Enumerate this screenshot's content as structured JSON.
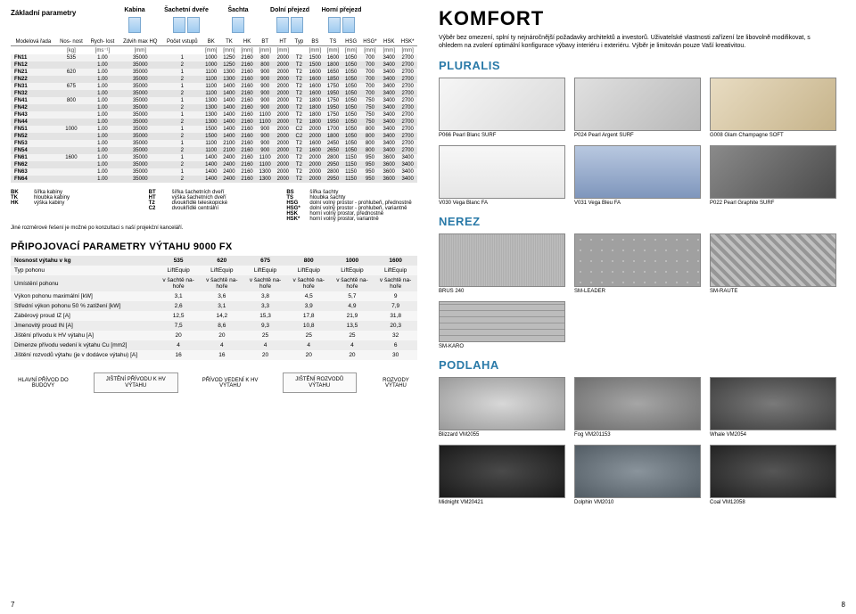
{
  "left": {
    "header_label": "Základní parametry",
    "header_cols": [
      "Kabina",
      "Šachetní dveře",
      "Šachta",
      "Dolní přejezd",
      "Horní přejezd"
    ],
    "cols_model": [
      "Modelová řada",
      "Nos-\nnost",
      "Rych-\nlost",
      "Zdvih max HQ",
      "Počet vstupů",
      "BK",
      "TK",
      "HK",
      "BT",
      "HT",
      "Typ",
      "BS",
      "TS",
      "HSG",
      "HSG*",
      "HSK",
      "HSK*"
    ],
    "units": [
      "",
      "[kg]",
      "[ms⁻¹]",
      "[mm]",
      "",
      "[mm]",
      "[mm]",
      "[mm]",
      "[mm]",
      "[mm]",
      "",
      "[mm]",
      "[mm]",
      "[mm]",
      "[mm]",
      "[mm]",
      "[mm]"
    ],
    "rows": [
      [
        "FN11",
        "535",
        "1.00",
        "35000",
        "1",
        "1000",
        "1250",
        "2160",
        "800",
        "2000",
        "T2",
        "1500",
        "1600",
        "1050",
        "700",
        "3400",
        "2700"
      ],
      [
        "FN12",
        "",
        "1.00",
        "35000",
        "2",
        "1000",
        "1250",
        "2160",
        "800",
        "2000",
        "T2",
        "1500",
        "1800",
        "1050",
        "700",
        "3400",
        "2700"
      ],
      [
        "FN21",
        "620",
        "1.00",
        "35000",
        "1",
        "1100",
        "1300",
        "2160",
        "900",
        "2000",
        "T2",
        "1600",
        "1650",
        "1050",
        "700",
        "3400",
        "2700"
      ],
      [
        "FN22",
        "",
        "1.00",
        "35000",
        "2",
        "1100",
        "1300",
        "2160",
        "900",
        "2000",
        "T2",
        "1600",
        "1850",
        "1050",
        "700",
        "3400",
        "2700"
      ],
      [
        "FN31",
        "675",
        "1.00",
        "35000",
        "1",
        "1100",
        "1400",
        "2160",
        "900",
        "2000",
        "T2",
        "1600",
        "1750",
        "1050",
        "700",
        "3400",
        "2700"
      ],
      [
        "FN32",
        "",
        "1.00",
        "35000",
        "2",
        "1100",
        "1400",
        "2160",
        "900",
        "2000",
        "T2",
        "1600",
        "1950",
        "1050",
        "700",
        "3400",
        "2700"
      ],
      [
        "FN41",
        "800",
        "1.00",
        "35000",
        "1",
        "1300",
        "1400",
        "2160",
        "900",
        "2000",
        "T2",
        "1800",
        "1750",
        "1050",
        "750",
        "3400",
        "2700"
      ],
      [
        "FN42",
        "",
        "1.00",
        "35000",
        "2",
        "1300",
        "1400",
        "2160",
        "900",
        "2000",
        "T2",
        "1800",
        "1950",
        "1050",
        "750",
        "3400",
        "2700"
      ],
      [
        "FN43",
        "",
        "1.00",
        "35000",
        "1",
        "1300",
        "1400",
        "2160",
        "1100",
        "2000",
        "T2",
        "1800",
        "1750",
        "1050",
        "750",
        "3400",
        "2700"
      ],
      [
        "FN44",
        "",
        "1.00",
        "35000",
        "2",
        "1300",
        "1400",
        "2160",
        "1100",
        "2000",
        "T2",
        "1800",
        "1950",
        "1050",
        "750",
        "3400",
        "2700"
      ],
      [
        "FN51",
        "1000",
        "1.00",
        "35000",
        "1",
        "1500",
        "1400",
        "2160",
        "900",
        "2000",
        "C2",
        "2000",
        "1700",
        "1050",
        "800",
        "3400",
        "2700"
      ],
      [
        "FN52",
        "",
        "1.00",
        "35000",
        "2",
        "1500",
        "1400",
        "2160",
        "900",
        "2000",
        "C2",
        "2000",
        "1800",
        "1050",
        "800",
        "3400",
        "2700"
      ],
      [
        "FN53",
        "",
        "1.00",
        "35000",
        "1",
        "1100",
        "2100",
        "2160",
        "900",
        "2000",
        "T2",
        "1600",
        "2450",
        "1050",
        "800",
        "3400",
        "2700"
      ],
      [
        "FN54",
        "",
        "1.00",
        "35000",
        "2",
        "1100",
        "2100",
        "2160",
        "900",
        "2000",
        "T2",
        "1600",
        "2650",
        "1050",
        "800",
        "3400",
        "2700"
      ],
      [
        "FN61",
        "1600",
        "1.00",
        "35000",
        "1",
        "1400",
        "2400",
        "2160",
        "1100",
        "2000",
        "T2",
        "2000",
        "2800",
        "1150",
        "950",
        "3600",
        "3400"
      ],
      [
        "FN62",
        "",
        "1.00",
        "35000",
        "2",
        "1400",
        "2400",
        "2160",
        "1100",
        "2000",
        "T2",
        "2000",
        "2950",
        "1150",
        "950",
        "3600",
        "3400"
      ],
      [
        "FN63",
        "",
        "1.00",
        "35000",
        "1",
        "1400",
        "2400",
        "2160",
        "1300",
        "2000",
        "T2",
        "2000",
        "2800",
        "1150",
        "950",
        "3600",
        "3400"
      ],
      [
        "FN64",
        "",
        "1.00",
        "35000",
        "2",
        "1400",
        "2400",
        "2160",
        "1300",
        "2000",
        "T2",
        "2000",
        "2950",
        "1150",
        "950",
        "3600",
        "3400"
      ]
    ],
    "legend": [
      [
        [
          "BK",
          "šířka kabiny"
        ],
        [
          "TK",
          "hloubka kabiny"
        ],
        [
          "HK",
          "výška kabiny"
        ]
      ],
      [
        [
          "BT",
          "šířka šachetních dveří"
        ],
        [
          "HT",
          "výška šachetních dveří"
        ],
        [
          "T2",
          "dvoukřídlé teleskopické"
        ],
        [
          "C2",
          "dvoukřídlé centrální"
        ]
      ],
      [
        [
          "BS",
          "šířka šachty"
        ],
        [
          "TS",
          "hloubka šachty"
        ],
        [
          "HSG",
          "dolní volný prostor - prohlubeň, přednostně"
        ],
        [
          "HSG*",
          "dolní volný prostor - prohlubeň, variantně"
        ],
        [
          "HSK",
          "horní volný prostor, přednostně"
        ],
        [
          "HSK*",
          "horní volný prostor, variantně"
        ]
      ]
    ],
    "legend_note": "Jiné rozměrové řešení je možné po konzultaci s naší projekční kanceláří.",
    "params_title": "PŘIPOJOVACÍ PARAMETRY VÝTAHU 9000 FX",
    "params_head": [
      "Nosnost výtahu v kg",
      "535",
      "620",
      "675",
      "800",
      "1000",
      "1600"
    ],
    "params_rows": [
      [
        "Typ pohonu",
        "LiftEquip",
        "LiftEquip",
        "LiftEquip",
        "LiftEquip",
        "LiftEquip",
        "LiftEquip"
      ],
      [
        "Umístění pohonu",
        "v šachtě na-\nhoře",
        "v šachtě na-\nhoře",
        "v šachtě na-\nhoře",
        "v šachtě na-\nhoře",
        "v šachtě na-\nhoře",
        "v šachtě na-\nhoře"
      ],
      [
        "Výkon pohonu maximální [kW]",
        "3,1",
        "3,6",
        "3,8",
        "4,5",
        "5,7",
        "9"
      ],
      [
        "Střední výkon pohonu 50 % zatížení [kW]",
        "2,6",
        "3,1",
        "3,3",
        "3,9",
        "4,9",
        "7,9"
      ],
      [
        "Záběrový proud IZ [A]",
        "12,5",
        "14,2",
        "15,3",
        "17,8",
        "21,9",
        "31,8"
      ],
      [
        "Jmenovitý proud IN [A]",
        "7,5",
        "8,6",
        "9,3",
        "10,8",
        "13,5",
        "20,3"
      ],
      [
        "Jištění přívodu k HV výtahu [A]",
        "20",
        "20",
        "25",
        "25",
        "25",
        "32"
      ],
      [
        "Dimenze přívodu vedení k výtahu Cu [mm2]",
        "4",
        "4",
        "4",
        "4",
        "4",
        "6"
      ],
      [
        "Jištění rozvodů výtahu (je v dodávce výtahu) [A]",
        "16",
        "16",
        "20",
        "20",
        "20",
        "30"
      ]
    ],
    "wiring": [
      "HLAVNÍ PŘÍVOD DO BUDOVY",
      "JIŠTĚNÍ PŘÍVODU K HV VÝTAHU",
      "PŘÍVOD VEDENÍ K HV VÝTAHU",
      "JIŠTĚNÍ ROZVODŮ VÝTAHU",
      "ROZVODY VÝTAHU"
    ],
    "page_num": "7"
  },
  "right": {
    "title": "KOMFORT",
    "sub": "Výběr bez omezení, splní ty nejnáročnější požadavky architektů a investorů. Uživatelské vlastnosti zařízení lze libovolně modifikovat, s ohledem na zvolení optimální konfigurace výbavy interiéru i exteriéru. Výběr je limitován pouze Vaší kreativitou.",
    "sections": [
      {
        "title": "PLURALIS",
        "rows": [
          [
            {
              "cap": "P066 Pearl Blanc SURF",
              "bg": "#eeeeee",
              "grad": "linear-gradient(135deg,#f6f6f6,#d9d9d9)"
            },
            {
              "cap": "P024 Pearl Argent SURF",
              "bg": "#d0d0d0",
              "grad": "linear-gradient(135deg,#e0e0e0,#b8b8b8)"
            },
            {
              "cap": "G008 Glam Champagne SOFT",
              "bg": "#d8c9a8",
              "grad": "linear-gradient(135deg,#e8dcc2,#c6b38a)"
            }
          ],
          [
            {
              "cap": "V030 Vega Blanc FA",
              "bg": "#f4f4f4",
              "grad": "linear-gradient(#f7f7f7,#e6e6e6)"
            },
            {
              "cap": "V031 Vega Bleu FA",
              "bg": "#9fb4d4",
              "grad": "linear-gradient(#b8c8e0,#7f96bc)"
            },
            {
              "cap": "P022 Pearl Graphite SURF",
              "bg": "#6a6a6a",
              "grad": "linear-gradient(135deg,#8a8a8a,#4a4a4a)"
            }
          ]
        ]
      },
      {
        "title": "NEREZ",
        "rows": [
          [
            {
              "cap": "BRUS 240",
              "bg": "#b0b0b0",
              "grad": "repeating-linear-gradient(90deg,#c4c4c4 0,#a8a8a8 2px)"
            },
            {
              "cap": "SM-LEADER",
              "bg": "#a8a8a8",
              "grad": "radial-gradient(circle,#c4c4c4 10%,#a0a0a0 12%) 0 0/12px 12px"
            },
            {
              "cap": "SM-RAUTE",
              "bg": "#a4a4a4",
              "grad": "repeating-linear-gradient(45deg,#c0c0c0 0 4px,#969696 4px 8px)"
            }
          ],
          [
            {
              "cap": "SM-KARO",
              "bg": "#a6a6a6",
              "grad": "repeating-linear-gradient(0deg,#bcbcbc 0 6px,#989898 6px 7px),repeating-linear-gradient(90deg,#bcbcbc 0 6px,#989898 6px 7px)",
              "single": true
            }
          ]
        ]
      },
      {
        "title": "PODLAHA",
        "rows": [
          [
            {
              "cap": "Blizzard VM2055",
              "bg": "#c9c9c9",
              "grad": "radial-gradient(#d8d8d8,#9a9a9a)"
            },
            {
              "cap": "Fog VM201153",
              "bg": "#8f8f8f",
              "grad": "radial-gradient(#a6a6a6,#6e6e6e)"
            },
            {
              "cap": "Whale VM2054",
              "bg": "#5a5a5a",
              "grad": "radial-gradient(#7a7a7a,#3e3e3e)"
            }
          ],
          [
            {
              "cap": "Midnight VM20421",
              "bg": "#2e2e2e",
              "grad": "radial-gradient(#4a4a4a,#1a1a1a)"
            },
            {
              "cap": "Dolphin VM2010",
              "bg": "#6c7880",
              "grad": "radial-gradient(#8a949c,#525c64)"
            },
            {
              "cap": "Coal VM12058",
              "bg": "#3a3a3a",
              "grad": "radial-gradient(#565656,#222222)"
            }
          ]
        ]
      }
    ],
    "page_num": "8"
  }
}
